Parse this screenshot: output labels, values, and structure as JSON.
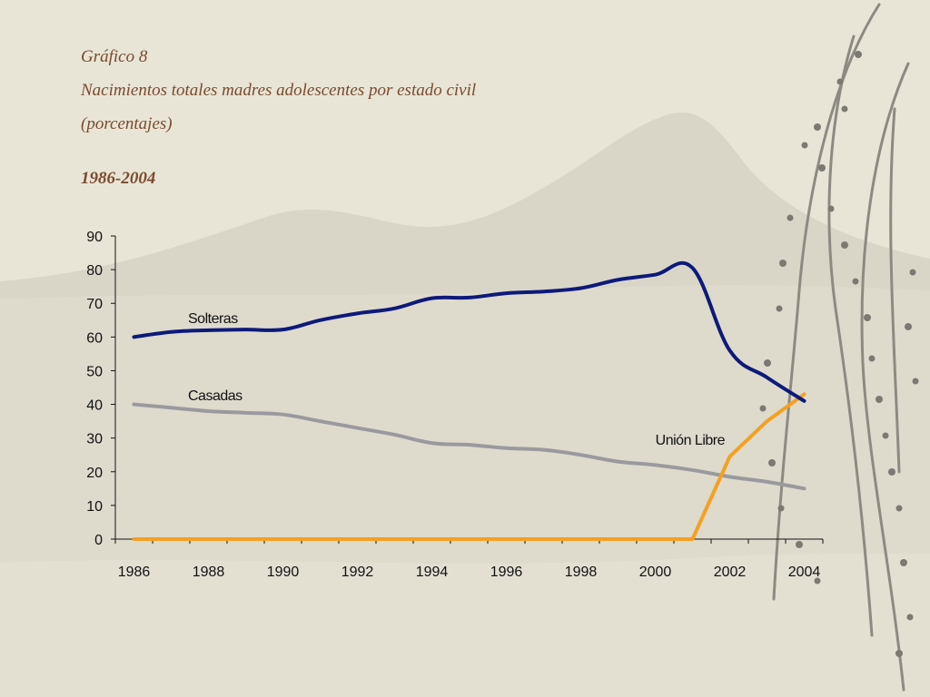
{
  "header": {
    "figure_label": "Gráfico 8",
    "title": "Nacimientos totales madres adolescentes por estado civil",
    "subtitle": "(porcentajes)",
    "period": "1986-2004"
  },
  "chart_data": {
    "type": "line",
    "title": "Nacimientos totales madres adolescentes por estado civil",
    "subtitle": "(porcentajes)",
    "xlabel": "",
    "ylabel": "",
    "xlim": [
      1986,
      2005
    ],
    "ylim": [
      0,
      90
    ],
    "y_ticks": [
      0,
      10,
      20,
      30,
      40,
      50,
      60,
      70,
      80,
      90
    ],
    "x_ticks": [
      1986,
      1988,
      1990,
      1992,
      1994,
      1996,
      1998,
      2000,
      2002,
      2004
    ],
    "grid": false,
    "legend": "inline labels",
    "x": [
      1986,
      1987,
      1988,
      1989,
      1990,
      1991,
      1992,
      1993,
      1994,
      1995,
      1996,
      1997,
      1998,
      1999,
      2000,
      2001,
      2002,
      2003,
      2004
    ],
    "series": [
      {
        "name": "Solteras",
        "color": "#0d1a7a",
        "values": [
          60,
          61.5,
          62,
          62.2,
          62.2,
          65,
          67,
          68.5,
          71.5,
          71.7,
          73,
          73.5,
          74.5,
          77,
          78.5,
          80.5,
          56,
          48,
          41
        ]
      },
      {
        "name": "Casadas",
        "color": "#9a9a9e",
        "values": [
          40,
          39,
          38,
          37.5,
          37,
          35,
          33,
          31,
          28.5,
          28,
          27,
          26.5,
          25,
          23,
          22,
          20.5,
          18.5,
          17,
          15
        ]
      },
      {
        "name": "Unión Libre",
        "color": "#f5a020",
        "values": [
          0,
          0,
          0,
          0,
          0,
          0,
          0,
          0,
          0,
          0,
          0,
          0,
          0,
          0,
          0,
          0,
          24.5,
          35,
          43
        ]
      }
    ]
  }
}
